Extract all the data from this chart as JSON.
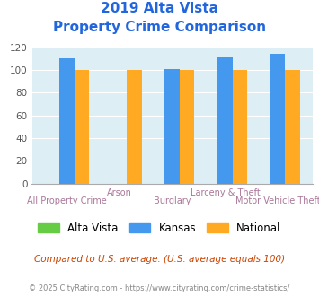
{
  "title_line1": "2019 Alta Vista",
  "title_line2": "Property Crime Comparison",
  "title_color": "#2266dd",
  "categories": [
    "All Property Crime",
    "Arson",
    "Burglary",
    "Larceny & Theft",
    "Motor Vehicle Theft"
  ],
  "top_labels": [
    "",
    "Arson",
    "",
    "Larceny & Theft",
    ""
  ],
  "bot_labels": [
    "All Property Crime",
    "",
    "Burglary",
    "",
    "Motor Vehicle Theft"
  ],
  "series": {
    "Alta Vista": [
      0,
      0,
      0,
      0,
      0
    ],
    "Kansas": [
      110,
      0,
      101,
      112,
      114
    ],
    "National": [
      100,
      100,
      100,
      100,
      100
    ]
  },
  "colors": {
    "Alta Vista": "#66cc44",
    "Kansas": "#4499ee",
    "National": "#ffaa22"
  },
  "ylim": [
    0,
    120
  ],
  "yticks": [
    0,
    20,
    40,
    60,
    80,
    100,
    120
  ],
  "plot_bg": "#ddeef5",
  "grid_color": "#ffffff",
  "xlabel_color": "#aa7799",
  "footer_text": "Compared to U.S. average. (U.S. average equals 100)",
  "footer_color": "#cc4400",
  "credit_text": "© 2025 CityRating.com - https://www.cityrating.com/crime-statistics/",
  "credit_color": "#888888",
  "bar_width": 0.28
}
